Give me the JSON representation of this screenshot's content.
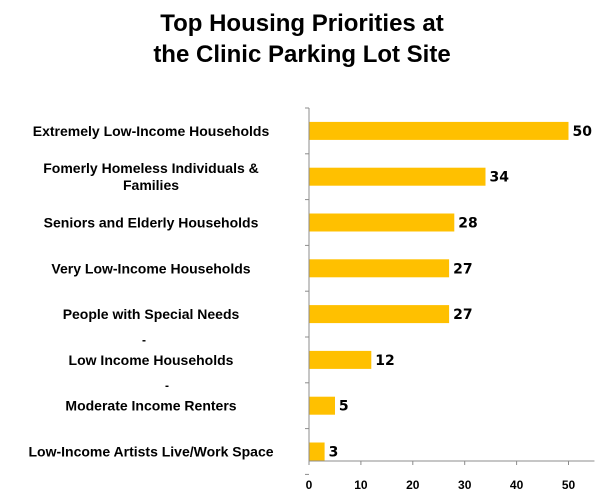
{
  "chart_data": {
    "type": "bar",
    "orientation": "horizontal",
    "title": "Top Housing Priorities at the Clinic Parking Lot Site",
    "title_lines": [
      "Top Housing Priorities at",
      "the Clinic Parking Lot Site"
    ],
    "categories": [
      [
        "Extremely Low-Income Households"
      ],
      [
        "Fomerly Homeless Individuals &",
        "Families"
      ],
      [
        "Seniors and Elderly Households"
      ],
      [
        "Very Low-Income Households"
      ],
      [
        "People with Special Needs"
      ],
      [
        "Low Income Households"
      ],
      [
        "Moderate Income Renters"
      ],
      [
        "Low-Income Artists Live/Work Space"
      ]
    ],
    "category_markers": [
      "",
      "",
      "",
      "",
      "",
      "-",
      "-",
      ""
    ],
    "values": [
      50,
      34,
      28,
      27,
      27,
      12,
      5,
      3
    ],
    "xlim": [
      0,
      55
    ],
    "xticks": [
      0,
      10,
      20,
      30,
      40,
      50
    ],
    "bar_color": "#FFC000",
    "grid": false,
    "legend": "none"
  }
}
